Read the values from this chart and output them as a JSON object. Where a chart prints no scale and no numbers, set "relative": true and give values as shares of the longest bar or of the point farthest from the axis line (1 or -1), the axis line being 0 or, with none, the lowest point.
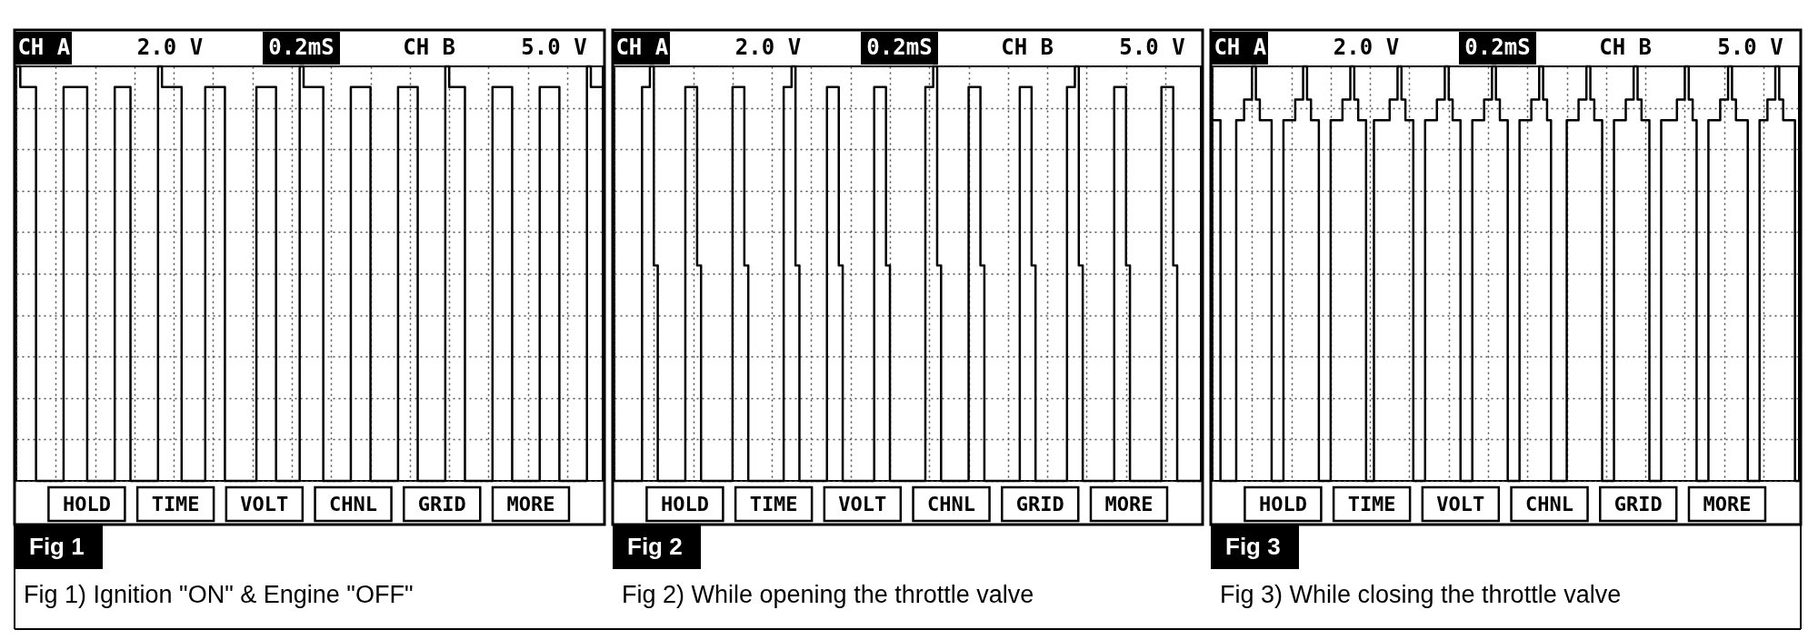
{
  "chart_data": [
    {
      "type": "step",
      "title": "Fig 1",
      "subtitle": "Fig 1) Ignition \"ON\" & Engine \"OFF\"",
      "annotations": [
        "CH A",
        "2.0 V",
        "0.2mS",
        "CH B",
        "5.0 V",
        "HOLD",
        "TIME",
        "VOLT",
        "CHNL",
        "GRID",
        "MORE"
      ],
      "categories": [
        null,
        null,
        null,
        null,
        null,
        null,
        null,
        null,
        null,
        null,
        null,
        null,
        null,
        null,
        null,
        null,
        null,
        null,
        null,
        null,
        null,
        null,
        null,
        null,
        null,
        null,
        null,
        null,
        null,
        null,
        null,
        null,
        null,
        null,
        null,
        null,
        null,
        null,
        null,
        null,
        null,
        null,
        null,
        null,
        null,
        null,
        null,
        null,
        null,
        null,
        null,
        null,
        null,
        null,
        null,
        null,
        null,
        null,
        null,
        null,
        null,
        null,
        null,
        null,
        null,
        null,
        null,
        null,
        null,
        null,
        null,
        null,
        null,
        null,
        null,
        null,
        null,
        null,
        null,
        null,
        null,
        null,
        null,
        null,
        null,
        null,
        null,
        null,
        null,
        null,
        null,
        null,
        null,
        null,
        null,
        null,
        null,
        null,
        null,
        null,
        null,
        null,
        null,
        null,
        null,
        null,
        null,
        null,
        null,
        null,
        null,
        null,
        null,
        null,
        null,
        null,
        null,
        null,
        null,
        null,
        null,
        null,
        null,
        null,
        null,
        null,
        null,
        null,
        null,
        null,
        null,
        null,
        null,
        null,
        null,
        null,
        null,
        null,
        null,
        null,
        null,
        null,
        null,
        null,
        null,
        null,
        null,
        null,
        null,
        null
      ],
      "relative": true,
      "grid": true,
      "series": [
        {
          "color": "#000000",
          "values": [
            1,
            0.95,
            0.95,
            0.95,
            0.95,
            0,
            0,
            0,
            0,
            0,
            0,
            0,
            0.95,
            0.95,
            0.95,
            0.95,
            0.95,
            0.95,
            0,
            0,
            0,
            0,
            0,
            0,
            0,
            0.95,
            0.95,
            0.95,
            0.95,
            0,
            0,
            0,
            0,
            0,
            0,
            0,
            1,
            0.95,
            0.95,
            0.95,
            0.95,
            0.95,
            0,
            0,
            0,
            0,
            0,
            0,
            0.95,
            0.95,
            0.95,
            0.95,
            0.95,
            0,
            0,
            0,
            0,
            0,
            0,
            0,
            0,
            0.95,
            0.95,
            0.95,
            0.95,
            0.95,
            0,
            0,
            0,
            0,
            0,
            0,
            1,
            0.95,
            0.95,
            0.95,
            0.95,
            0.95,
            0,
            0,
            0,
            0,
            0,
            0,
            0,
            0.95,
            0.95,
            0.95,
            0.95,
            0.95,
            0,
            0,
            0,
            0,
            0,
            0,
            0,
            0.95,
            0.95,
            0.95,
            0.95,
            0.95,
            0,
            0,
            0,
            0,
            0,
            0,
            0,
            1,
            0.95,
            0.95,
            0.95,
            0.95,
            0,
            0,
            0,
            0,
            0,
            0,
            0,
            0.95,
            0.95,
            0.95,
            0.95,
            0.95,
            0,
            0,
            0,
            0,
            0,
            0,
            0,
            0.95,
            0.95,
            0.95,
            0.95,
            0.95,
            0,
            0,
            0,
            0,
            0,
            0,
            0,
            1,
            0.95,
            0.95,
            0.95,
            0.95
          ]
        }
      ]
    },
    {
      "type": "step",
      "title": "Fig 2",
      "subtitle": "Fig 2) While opening the throttle valve",
      "annotations": [
        "CH A",
        "2.0 V",
        "0.2mS",
        "CH B",
        "5.0 V",
        "HOLD",
        "TIME",
        "VOLT",
        "CHNL",
        "GRID",
        "MORE"
      ],
      "categories": [
        null,
        null,
        null,
        null,
        null,
        null,
        null,
        null,
        null,
        null,
        null,
        null,
        null,
        null,
        null,
        null,
        null,
        null,
        null,
        null,
        null,
        null,
        null,
        null,
        null,
        null,
        null,
        null,
        null,
        null,
        null,
        null,
        null,
        null,
        null,
        null,
        null,
        null,
        null,
        null,
        null,
        null,
        null,
        null,
        null,
        null,
        null,
        null,
        null,
        null,
        null,
        null,
        null,
        null,
        null,
        null,
        null,
        null,
        null,
        null,
        null,
        null,
        null,
        null,
        null,
        null,
        null,
        null,
        null,
        null,
        null,
        null,
        null,
        null,
        null,
        null,
        null,
        null,
        null,
        null,
        null,
        null,
        null,
        null,
        null,
        null,
        null,
        null,
        null,
        null,
        null,
        null,
        null,
        null,
        null,
        null,
        null,
        null,
        null,
        null,
        null,
        null,
        null,
        null,
        null,
        null,
        null,
        null,
        null,
        null,
        null,
        null,
        null,
        null,
        null,
        null,
        null,
        null,
        null,
        null,
        null,
        null,
        null,
        null,
        null,
        null,
        null,
        null,
        null,
        null,
        null,
        null,
        null,
        null,
        null,
        null,
        null,
        null,
        null,
        null,
        null,
        null,
        null,
        null,
        null,
        null,
        null,
        null,
        null,
        null
      ],
      "relative": true,
      "grid": true,
      "series": [
        {
          "color": "#000000",
          "values": [
            0,
            0,
            0,
            0,
            0,
            0,
            0,
            0.95,
            0.95,
            1,
            0.52,
            0,
            0,
            0,
            0,
            0,
            0,
            0,
            0.95,
            0.95,
            0.95,
            0.52,
            0,
            0,
            0,
            0,
            0,
            0,
            0,
            0,
            0.95,
            0.95,
            0.95,
            0.52,
            0,
            0,
            0,
            0,
            0,
            0,
            0,
            0,
            0,
            0.95,
            0.95,
            1,
            0.52,
            0,
            0,
            0,
            0,
            0,
            0,
            0,
            0.95,
            0.95,
            0.95,
            0.52,
            0,
            0,
            0,
            0,
            0,
            0,
            0,
            0,
            0.95,
            0.95,
            0.95,
            0.52,
            0,
            0,
            0,
            0,
            0,
            0,
            0,
            0,
            0,
            0.95,
            0.95,
            1,
            0.52,
            0,
            0,
            0,
            0,
            0,
            0,
            0,
            0.95,
            0.95,
            0.95,
            0.52,
            0,
            0,
            0,
            0,
            0,
            0,
            0,
            0,
            0,
            0.95,
            0.95,
            0.95,
            0.52,
            0,
            0,
            0,
            0,
            0,
            0,
            0,
            0,
            0.95,
            0.95,
            1,
            0.52,
            0,
            0,
            0,
            0,
            0,
            0,
            0,
            0,
            0.95,
            0.95,
            0.95,
            0.52,
            0,
            0,
            0,
            0,
            0,
            0,
            0,
            0,
            0.95,
            0.95,
            0.95,
            0.52,
            0,
            0,
            0,
            0,
            0,
            0,
            0
          ]
        }
      ]
    },
    {
      "type": "step",
      "title": "Fig 3",
      "subtitle": "Fig 3) While closing the throttle valve",
      "annotations": [
        "CH A",
        "2.0 V",
        "0.2mS",
        "CH B",
        "5.0 V",
        "HOLD",
        "TIME",
        "VOLT",
        "CHNL",
        "GRID",
        "MORE"
      ],
      "categories": [
        null,
        null,
        null,
        null,
        null,
        null,
        null,
        null,
        null,
        null,
        null,
        null,
        null,
        null,
        null,
        null,
        null,
        null,
        null,
        null,
        null,
        null,
        null,
        null,
        null,
        null,
        null,
        null,
        null,
        null,
        null,
        null,
        null,
        null,
        null,
        null,
        null,
        null,
        null,
        null,
        null,
        null,
        null,
        null,
        null,
        null,
        null,
        null,
        null,
        null,
        null,
        null,
        null,
        null,
        null,
        null,
        null,
        null,
        null,
        null,
        null,
        null,
        null,
        null,
        null,
        null,
        null,
        null,
        null,
        null,
        null,
        null,
        null,
        null,
        null,
        null,
        null,
        null,
        null,
        null,
        null,
        null,
        null,
        null,
        null,
        null,
        null,
        null,
        null,
        null,
        null,
        null,
        null,
        null,
        null,
        null,
        null,
        null,
        null,
        null,
        null,
        null,
        null,
        null,
        null,
        null,
        null,
        null,
        null,
        null,
        null,
        null,
        null,
        null,
        null,
        null,
        null,
        null,
        null,
        null,
        null,
        null,
        null,
        null,
        null,
        null,
        null,
        null,
        null,
        null,
        null,
        null,
        null,
        null,
        null,
        null,
        null,
        null,
        null,
        null,
        null,
        null,
        null,
        null,
        null,
        null,
        null,
        null,
        null,
        null
      ],
      "relative": true,
      "grid": true,
      "series": [
        {
          "color": "#000000",
          "values": [
            0.87,
            0.87,
            0,
            0,
            0,
            0,
            0.87,
            0.87,
            0.92,
            0.92,
            1,
            0.92,
            0.87,
            0.87,
            0.87,
            0,
            0,
            0,
            0.87,
            0.87,
            0.87,
            0.92,
            0.92,
            1,
            0.92,
            0.87,
            0.87,
            0,
            0,
            0,
            0.87,
            0.87,
            0.87,
            0.92,
            0.92,
            1,
            0.92,
            0.87,
            0.87,
            0,
            0,
            0.87,
            0.87,
            0.87,
            0.87,
            0.92,
            0.92,
            1,
            0.92,
            0.87,
            0.87,
            0,
            0,
            0,
            0.87,
            0.87,
            0.87,
            0.92,
            0.92,
            1,
            0.92,
            0.87,
            0.87,
            0,
            0,
            0,
            0.87,
            0.87,
            0.87,
            0.92,
            0.92,
            1,
            0.92,
            0.87,
            0.87,
            0,
            0,
            0,
            0.87,
            0.87,
            0.87,
            0.92,
            0.92,
            1,
            0.92,
            0.87,
            0,
            0,
            0,
            0,
            0.87,
            0.87,
            0.87,
            0.92,
            0.92,
            1,
            0.92,
            0.87,
            0.87,
            0,
            0,
            0,
            0.87,
            0.87,
            0.87,
            0.92,
            0.92,
            1,
            0.92,
            0.87,
            0.87,
            0,
            0,
            0,
            0.87,
            0.87,
            0.87,
            0.87,
            0.92,
            0.92,
            1,
            0.92,
            0.87,
            0,
            0,
            0,
            0.87,
            0.87,
            0.87,
            0.92,
            0.92,
            1,
            0.92,
            0.87,
            0.87,
            0.87,
            0,
            0,
            0,
            0.87,
            0.87,
            0.92,
            0.92,
            1,
            0.92,
            0.87,
            0.87,
            0.87,
            0,
            0
          ]
        }
      ]
    }
  ]
}
